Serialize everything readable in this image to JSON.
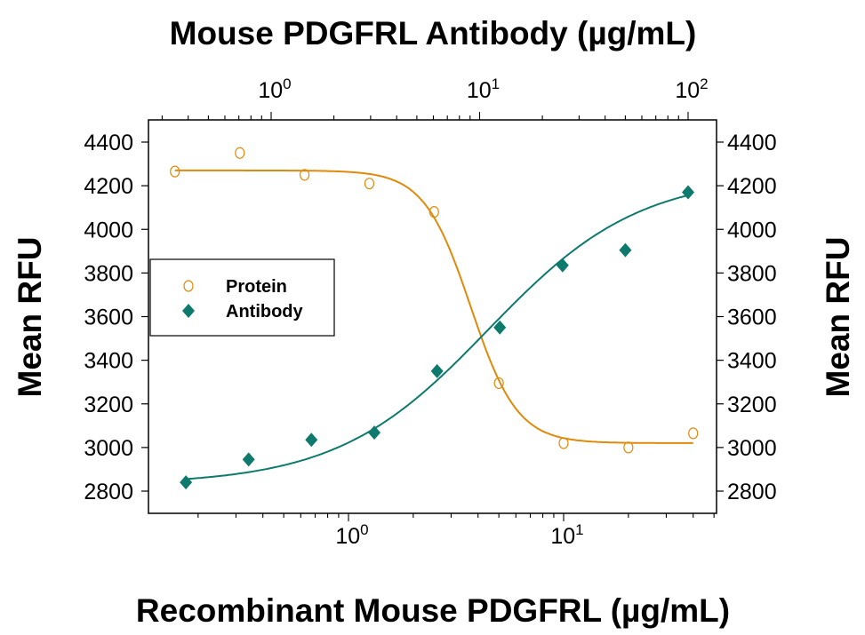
{
  "chart_data": {
    "type": "scatter",
    "title": "Mouse PDGFRL Antibody (µg/mL)",
    "xlabel": "Recombinant Mouse PDGFRL (µg/mL)",
    "ylabel": "Mean RFU",
    "ylabel_right": "Mean RFU",
    "x_scale": "log",
    "x_bottom_range": [
      0.118,
      51
    ],
    "x_top_range": [
      0.258,
      137
    ],
    "ylim": [
      2700,
      4500
    ],
    "y_ticks": [
      2800,
      3000,
      3200,
      3400,
      3600,
      3800,
      4000,
      4200,
      4400
    ],
    "x_bottom_ticks": [
      {
        "base": "10",
        "exp": "0",
        "value": 1
      },
      {
        "base": "10",
        "exp": "1",
        "value": 10
      }
    ],
    "x_top_ticks": [
      {
        "base": "10",
        "exp": "0",
        "value": 1
      },
      {
        "base": "10",
        "exp": "1",
        "value": 10
      },
      {
        "base": "10",
        "exp": "2",
        "value": 100
      }
    ],
    "grid": false,
    "legend_position": "left",
    "series": [
      {
        "name": "Protein",
        "axis": "bottom",
        "marker": "open-circle",
        "color": "#E08A0B",
        "x": [
          0.156,
          0.3125,
          0.625,
          1.25,
          2.5,
          5,
          10,
          20,
          40
        ],
        "y": [
          4265,
          4350,
          4250,
          4210,
          4080,
          3295,
          3020,
          3000,
          3065
        ]
      },
      {
        "name": "Antibody",
        "axis": "top",
        "marker": "filled-diamond",
        "color": "#0E7A6E",
        "x": [
          0.39,
          0.78,
          1.56,
          3.125,
          6.25,
          12.5,
          25,
          50,
          100
        ],
        "y": [
          2840,
          2945,
          3035,
          3068,
          3350,
          3550,
          3835,
          3905,
          4170
        ]
      }
    ]
  }
}
